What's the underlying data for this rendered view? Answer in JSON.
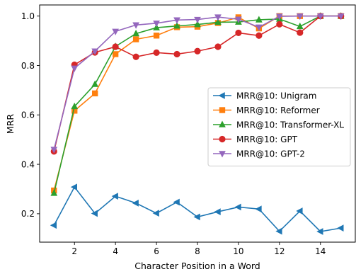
{
  "chart_data": {
    "type": "line",
    "title": "",
    "xlabel": "Character Position in a Word",
    "ylabel": "MRR",
    "xlim": [
      0.3,
      15.7
    ],
    "ylim": [
      0.085,
      1.045
    ],
    "xticks": [
      2,
      4,
      6,
      8,
      10,
      12,
      14
    ],
    "yticks": [
      0.2,
      0.4,
      0.6,
      0.8,
      1.0
    ],
    "ytick_labels": [
      "0.2",
      "0.4",
      "0.6",
      "0.8",
      "1.0"
    ],
    "grid": false,
    "legend_position": "center-right",
    "x": [
      1,
      2,
      3,
      4,
      5,
      6,
      7,
      8,
      9,
      10,
      11,
      12,
      13,
      14,
      15
    ],
    "series": [
      {
        "name": "MRR@10: Unigram",
        "color": "#1f77b4",
        "marker": "triangle-left",
        "values": [
          0.153,
          0.308,
          0.201,
          0.271,
          0.243,
          0.202,
          0.247,
          0.187,
          0.208,
          0.227,
          0.219,
          0.129,
          0.211,
          0.128,
          0.142
        ]
      },
      {
        "name": "MRR@10: Reformer",
        "color": "#ff7f0e",
        "marker": "square",
        "values": [
          0.294,
          0.617,
          0.687,
          0.846,
          0.906,
          0.921,
          0.955,
          0.957,
          0.972,
          0.995,
          0.95,
          1.0,
          1.0,
          1.0,
          1.0
        ]
      },
      {
        "name": "MRR@10: Transformer-XL",
        "color": "#2ca02c",
        "marker": "triangle-up",
        "values": [
          0.283,
          0.634,
          0.724,
          0.877,
          0.929,
          0.953,
          0.96,
          0.966,
          0.975,
          0.976,
          0.985,
          0.988,
          0.958,
          1.0,
          1.0
        ]
      },
      {
        "name": "MRR@10: GPT",
        "color": "#d62728",
        "marker": "circle",
        "values": [
          0.452,
          0.803,
          0.853,
          0.876,
          0.835,
          0.852,
          0.846,
          0.858,
          0.876,
          0.932,
          0.921,
          0.967,
          0.933,
          1.0,
          1.0
        ]
      },
      {
        "name": "MRR@10: GPT-2",
        "color": "#9467bd",
        "marker": "triangle-down",
        "values": [
          0.46,
          0.789,
          0.858,
          0.938,
          0.964,
          0.971,
          0.984,
          0.986,
          0.996,
          0.987,
          0.955,
          0.999,
          1.0,
          1.0,
          1.0
        ]
      }
    ]
  }
}
